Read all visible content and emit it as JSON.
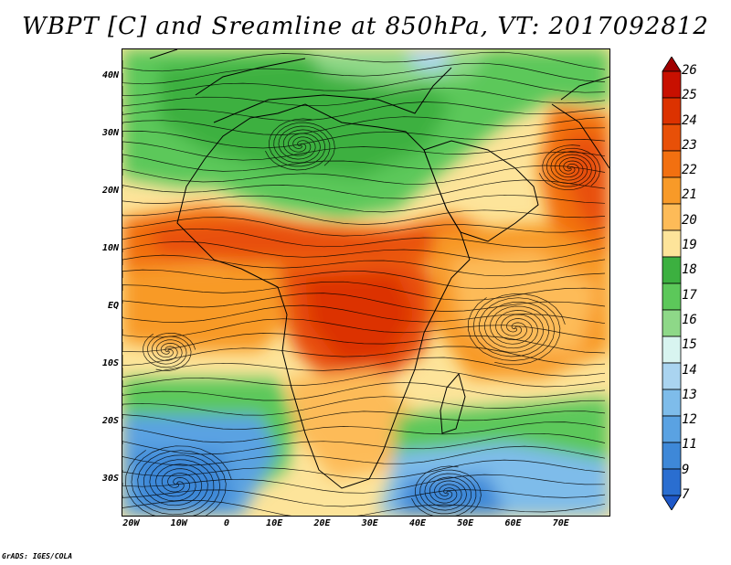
{
  "title": "WBPT [C] and Sreamline at 850hPa, VT: 2017092812",
  "credit": "GrADS: IGES/COLA",
  "map": {
    "lon_range": [
      -22,
      80
    ],
    "lat_range": [
      -36,
      45
    ],
    "lat_ticks": [
      {
        "label": "40N",
        "lat": 40
      },
      {
        "label": "30N",
        "lat": 30
      },
      {
        "label": "20N",
        "lat": 20
      },
      {
        "label": "10N",
        "lat": 10
      },
      {
        "label": "EQ",
        "lat": 0
      },
      {
        "label": "10S",
        "lat": -10
      },
      {
        "label": "20S",
        "lat": -20
      },
      {
        "label": "30S",
        "lat": -30
      }
    ],
    "lon_ticks": [
      {
        "label": "20W",
        "lon": -20
      },
      {
        "label": "10W",
        "lon": -10
      },
      {
        "label": "0",
        "lon": 0
      },
      {
        "label": "10E",
        "lon": 10
      },
      {
        "label": "20E",
        "lon": 20
      },
      {
        "label": "30E",
        "lon": 30
      },
      {
        "label": "40E",
        "lon": 40
      },
      {
        "label": "50E",
        "lon": 50
      },
      {
        "label": "60E",
        "lon": 60
      },
      {
        "label": "70E",
        "lon": 70
      }
    ]
  },
  "colorbar": {
    "labels": [
      "26",
      "25",
      "24",
      "23",
      "22",
      "21",
      "20",
      "19",
      "18",
      "17",
      "16",
      "15",
      "14",
      "13",
      "12",
      "11",
      "9",
      "7"
    ],
    "colors": [
      "#a00000",
      "#c81000",
      "#dc3200",
      "#e85008",
      "#f27010",
      "#f89a28",
      "#fdbb58",
      "#fde49a",
      "#3cb040",
      "#5cc85a",
      "#8ed888",
      "#d8f4f0",
      "#aad4f0",
      "#7ebcea",
      "#5aa2e2",
      "#3e88d8",
      "#2a6ed0",
      "#1e58c8"
    ]
  }
}
